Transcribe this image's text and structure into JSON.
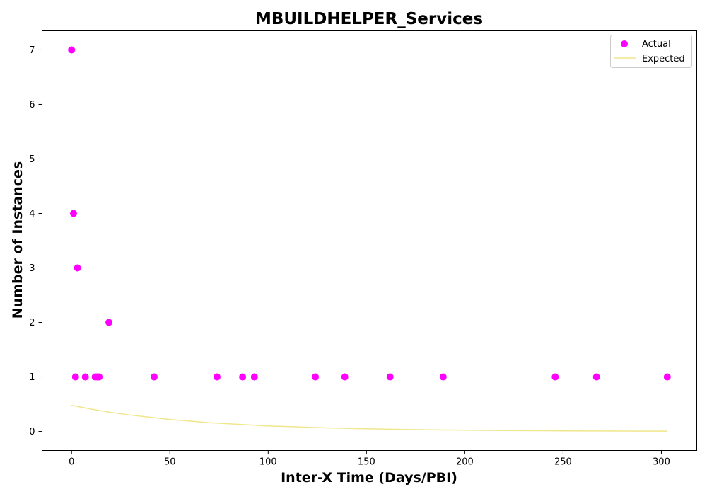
{
  "chart_data": {
    "type": "scatter",
    "title": "MBUILDHELPER_Services",
    "xlabel": "Inter-X Time (Days/PBI)",
    "ylabel": "Number of Instances",
    "xlim": [
      -15,
      318
    ],
    "ylim": [
      -0.35,
      7.35
    ],
    "xticks": [
      0,
      50,
      100,
      150,
      200,
      250,
      300
    ],
    "yticks": [
      0,
      1,
      2,
      3,
      4,
      5,
      6,
      7
    ],
    "grid": false,
    "legend_position": "top-right",
    "series": [
      {
        "name": "Actual",
        "kind": "scatter",
        "color": "#ff00ff",
        "x": [
          0,
          1,
          2,
          3,
          7,
          12,
          13,
          14,
          19,
          42,
          74,
          87,
          93,
          124,
          139,
          162,
          189,
          246,
          267,
          303
        ],
        "y": [
          7,
          4,
          1,
          3,
          1,
          1,
          1,
          1,
          2,
          1,
          1,
          1,
          1,
          1,
          1,
          1,
          1,
          1,
          1,
          1
        ]
      },
      {
        "name": "Expected",
        "kind": "line",
        "color": "#f0e68c",
        "x": [
          0,
          10,
          20,
          30,
          40,
          50,
          60,
          70,
          80,
          90,
          100,
          110,
          120,
          130,
          140,
          150,
          160,
          170,
          180,
          190,
          200,
          210,
          220,
          230,
          240,
          250,
          260,
          270,
          280,
          290,
          300,
          303
        ],
        "y": [
          0.48,
          0.41,
          0.35,
          0.3,
          0.26,
          0.22,
          0.19,
          0.16,
          0.14,
          0.12,
          0.1,
          0.09,
          0.077,
          0.066,
          0.057,
          0.049,
          0.042,
          0.036,
          0.031,
          0.027,
          0.023,
          0.02,
          0.017,
          0.015,
          0.013,
          0.011,
          0.009,
          0.008,
          0.007,
          0.006,
          0.005,
          0.005
        ]
      }
    ]
  }
}
